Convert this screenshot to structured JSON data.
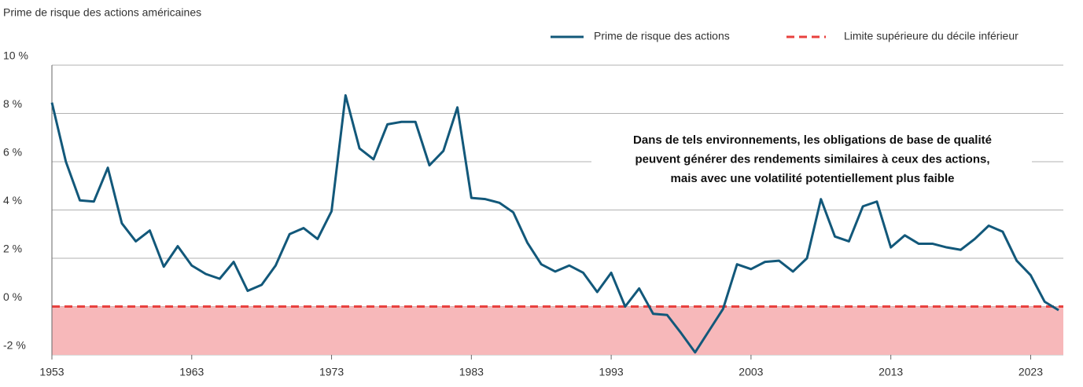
{
  "chart_data": {
    "type": "line",
    "title": "Prime de risque des actions américaines",
    "x": [
      1953,
      1954,
      1955,
      1956,
      1957,
      1958,
      1959,
      1960,
      1961,
      1962,
      1963,
      1964,
      1965,
      1966,
      1967,
      1968,
      1969,
      1970,
      1971,
      1972,
      1973,
      1974,
      1975,
      1976,
      1977,
      1978,
      1979,
      1980,
      1981,
      1982,
      1983,
      1984,
      1985,
      1986,
      1987,
      1988,
      1989,
      1990,
      1991,
      1992,
      1993,
      1994,
      1995,
      1996,
      1997,
      1998,
      1999,
      2000,
      2001,
      2002,
      2003,
      2004,
      2005,
      2006,
      2007,
      2008,
      2009,
      2010,
      2011,
      2012,
      2013,
      2014,
      2015,
      2016,
      2017,
      2018,
      2019,
      2020,
      2021,
      2022,
      2023,
      2024,
      2025
    ],
    "series": [
      {
        "name": "Prime de risque des actions",
        "color": "#12587a",
        "values": [
          8.45,
          6.0,
          4.4,
          4.35,
          5.75,
          3.45,
          2.7,
          3.15,
          1.65,
          2.5,
          1.7,
          1.35,
          1.15,
          1.85,
          0.65,
          0.9,
          1.7,
          3.0,
          3.25,
          2.8,
          3.95,
          8.75,
          6.55,
          6.1,
          7.55,
          7.65,
          7.65,
          5.85,
          6.45,
          8.25,
          4.5,
          4.45,
          4.3,
          3.9,
          2.65,
          1.75,
          1.45,
          1.7,
          1.4,
          0.6,
          1.4,
          0.0,
          0.75,
          -0.3,
          -0.35,
          -1.1,
          -1.9,
          -1.0,
          -0.1,
          1.75,
          1.55,
          1.85,
          1.9,
          1.45,
          2.0,
          4.45,
          2.9,
          2.7,
          4.15,
          4.35,
          2.45,
          2.95,
          2.6,
          2.6,
          2.45,
          2.35,
          2.8,
          3.35,
          3.1,
          1.9,
          1.3,
          0.2,
          -0.15
        ]
      }
    ],
    "threshold": {
      "name": "Limite supérieure du décile inférieur",
      "color": "#e8413e",
      "fill": "#f7b8ba",
      "value": 0
    },
    "annotation": [
      "Dans de tels environnements, les obligations de base de qualité",
      "peuvent générer des rendements similaires à ceux des actions,",
      "mais avec une volatilité potentiellement plus faible"
    ],
    "xlim": [
      1953,
      2025
    ],
    "xticks": [
      1953,
      1963,
      1973,
      1983,
      1993,
      2003,
      2013,
      2023
    ],
    "ylim": [
      -2,
      10
    ],
    "yticks": [
      {
        "value": -2,
        "label": "-2 %"
      },
      {
        "value": 0,
        "label": "0 %"
      },
      {
        "value": 2,
        "label": "2 %"
      },
      {
        "value": 4,
        "label": "4 %"
      },
      {
        "value": 6,
        "label": "6 %"
      },
      {
        "value": 8,
        "label": "8 %"
      },
      {
        "value": 10,
        "label": "10 %"
      }
    ],
    "grid": true,
    "legend": "top-right"
  }
}
